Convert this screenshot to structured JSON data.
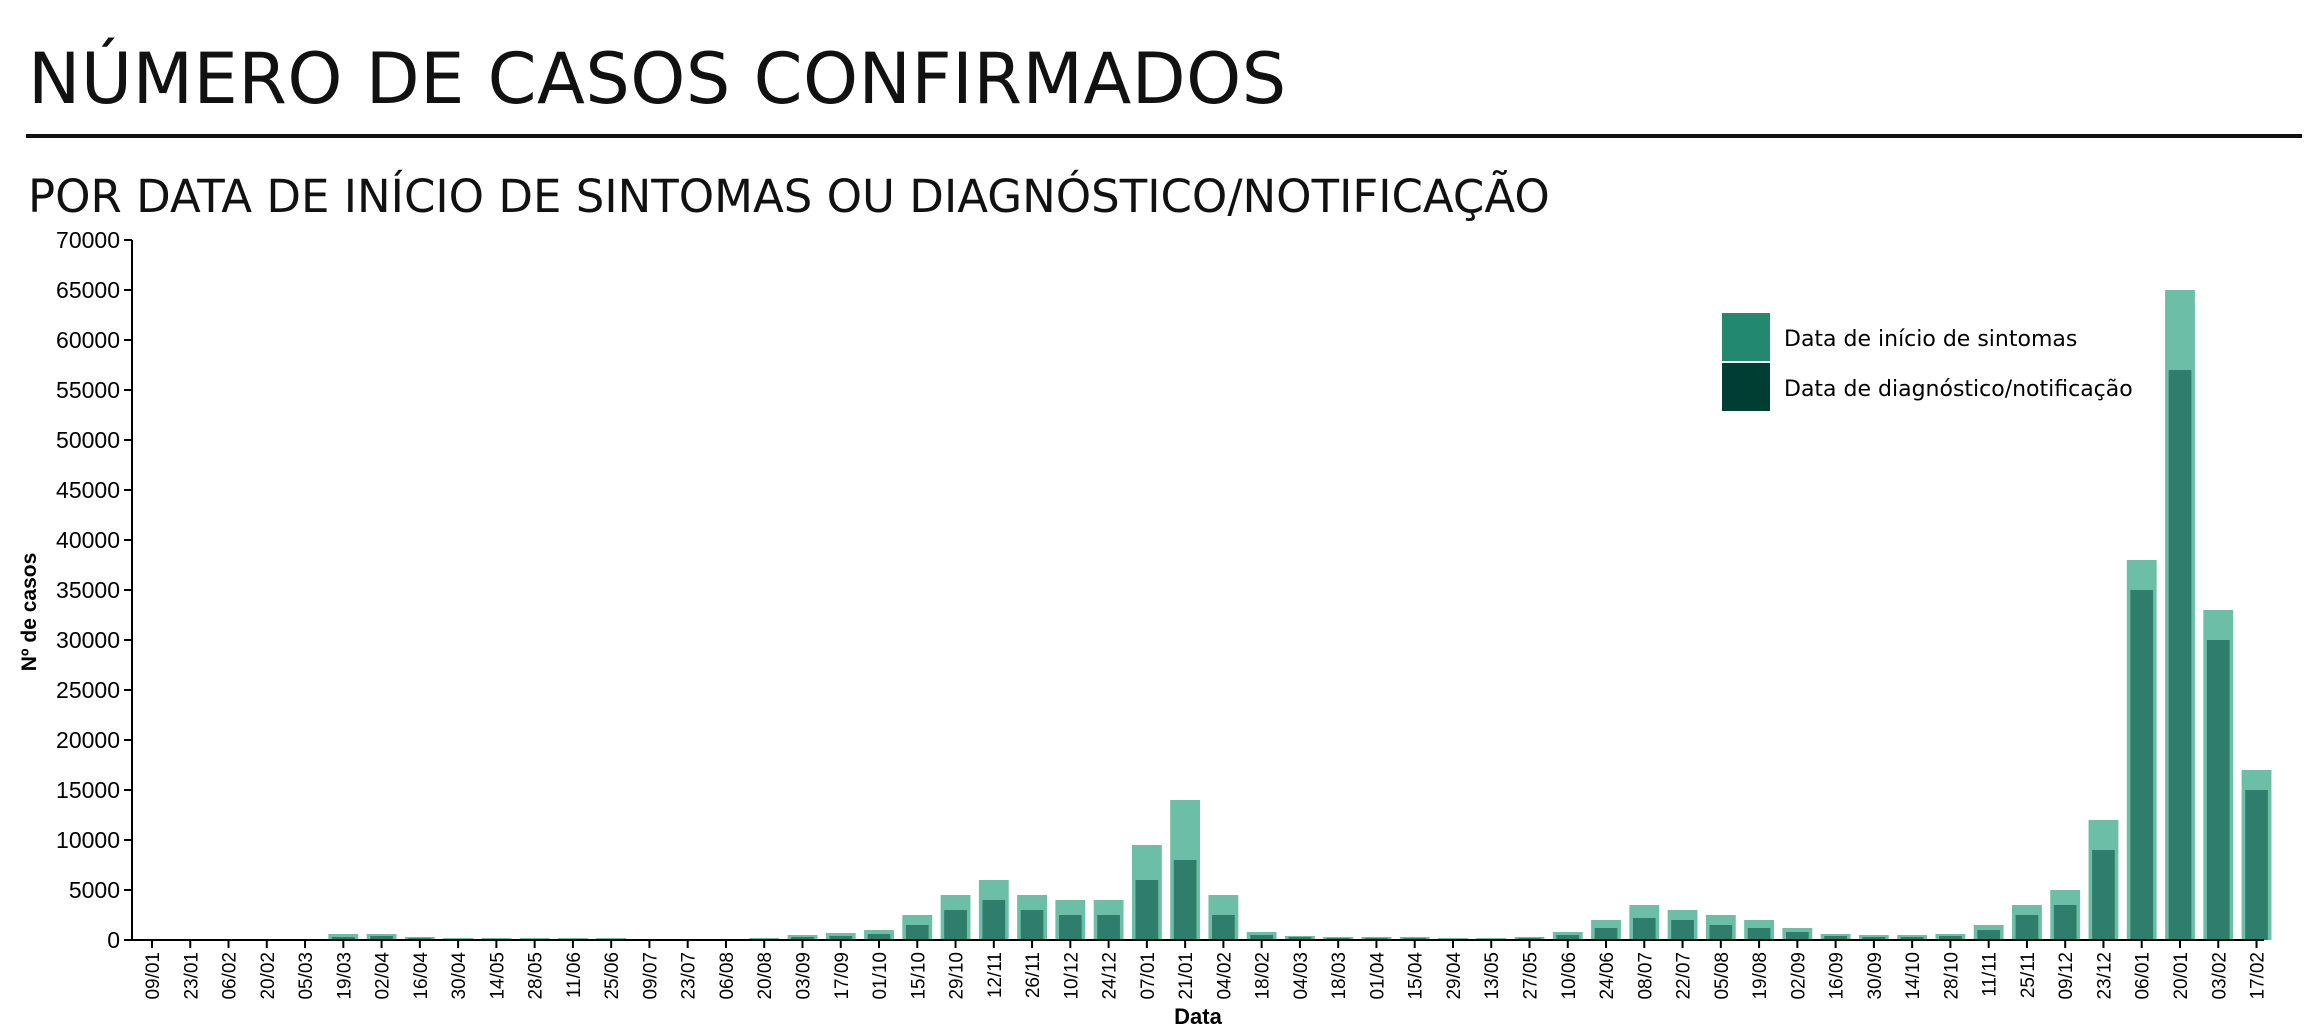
{
  "title": "NÚMERO DE CASOS CONFIRMADOS",
  "subtitle": "POR DATA DE INÍCIO DE SINTOMAS OU DIAGNÓSTICO/NOTIFICAÇÃO",
  "colors": {
    "symptoms": "#6cbfa6",
    "symptoms_legend": "#23896e",
    "diagnosis": "#2f7d6b",
    "diagnosis_legend": "#003d33",
    "axis": "#000000"
  },
  "chart_data": {
    "type": "bar",
    "xlabel": "Data",
    "ylabel": "Nº de casos",
    "ylim": [
      0,
      70000
    ],
    "yticks": [
      0,
      5000,
      10000,
      15000,
      20000,
      25000,
      30000,
      35000,
      40000,
      45000,
      50000,
      55000,
      60000,
      65000,
      70000
    ],
    "categories": [
      "09/01",
      "23/01",
      "06/02",
      "20/02",
      "05/03",
      "19/03",
      "02/04",
      "16/04",
      "30/04",
      "14/05",
      "28/05",
      "11/06",
      "25/06",
      "09/07",
      "23/07",
      "06/08",
      "20/08",
      "03/09",
      "17/09",
      "01/10",
      "15/10",
      "29/10",
      "12/11",
      "26/11",
      "10/12",
      "24/12",
      "07/01",
      "21/01",
      "04/02",
      "18/02",
      "04/03",
      "18/03",
      "01/04",
      "15/04",
      "29/04",
      "13/05",
      "27/05",
      "10/06",
      "24/06",
      "08/07",
      "22/07",
      "05/08",
      "19/08",
      "02/09",
      "16/09",
      "30/09",
      "14/10",
      "28/10",
      "11/11",
      "25/11",
      "09/12",
      "23/12",
      "06/01",
      "20/01",
      "03/02",
      "17/02"
    ],
    "legend": {
      "position": "top-right",
      "entries": [
        "Data de início de sintomas",
        "Data de diagnóstico/notificação"
      ]
    },
    "series": [
      {
        "name": "Data de início de sintomas",
        "values": [
          0,
          0,
          0,
          0,
          0,
          600,
          600,
          300,
          200,
          200,
          200,
          200,
          200,
          100,
          100,
          100,
          200,
          500,
          700,
          1000,
          2500,
          4500,
          6000,
          4500,
          4000,
          4000,
          9500,
          14000,
          4500,
          800,
          400,
          300,
          300,
          300,
          200,
          200,
          300,
          800,
          2000,
          3500,
          3000,
          2500,
          2000,
          1200,
          600,
          500,
          500,
          600,
          1500,
          3500,
          5000,
          12000,
          38000,
          65000,
          33000,
          17000
        ]
      },
      {
        "name": "Data de diagnóstico/notificação",
        "values": [
          0,
          0,
          0,
          0,
          0,
          300,
          400,
          200,
          100,
          100,
          100,
          100,
          100,
          100,
          100,
          100,
          100,
          300,
          400,
          600,
          1500,
          3000,
          4000,
          3000,
          2500,
          2500,
          6000,
          8000,
          2500,
          500,
          300,
          200,
          200,
          200,
          100,
          100,
          200,
          500,
          1200,
          2200,
          2000,
          1500,
          1200,
          800,
          400,
          300,
          300,
          400,
          1000,
          2500,
          3500,
          9000,
          35000,
          57000,
          30000,
          15000
        ]
      }
    ]
  }
}
